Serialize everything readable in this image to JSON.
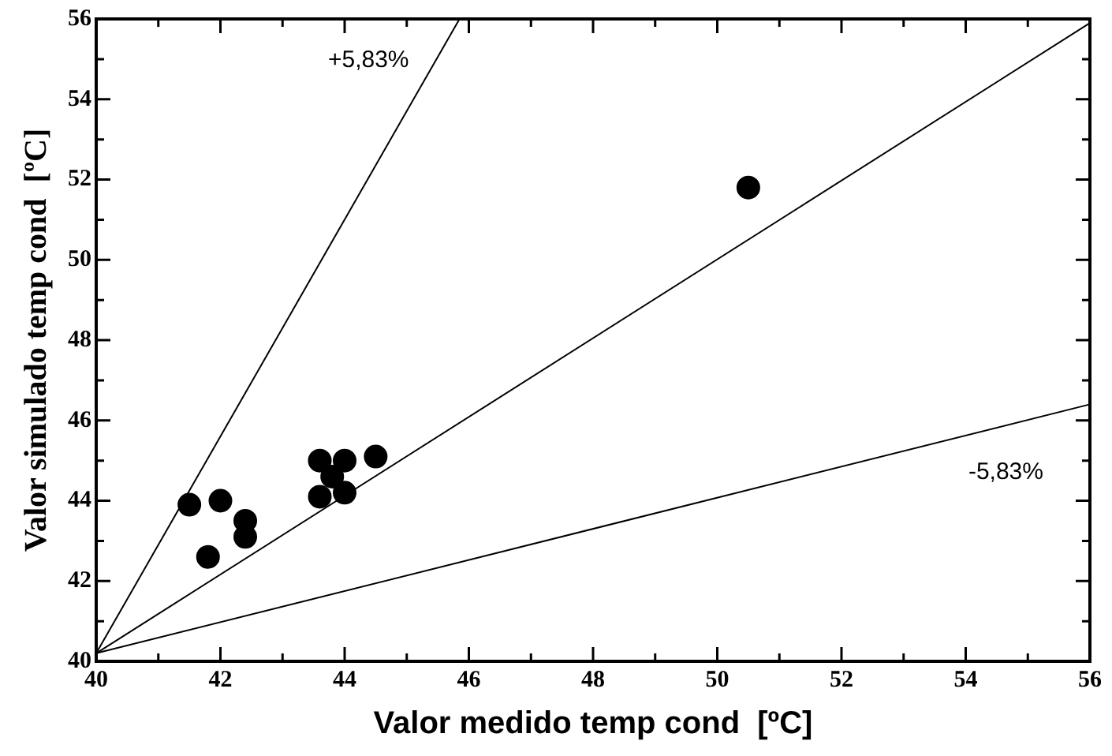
{
  "chart_data": {
    "type": "scatter",
    "xlabel": "Valor medido temp cond  [ºC]",
    "ylabel": "Valor simulado temp cond  [ºC]",
    "xlim": [
      40,
      56
    ],
    "ylim": [
      40,
      56
    ],
    "xticks": [
      40,
      {
        "value": 41,
        "label": null
      },
      42,
      {
        "value": 43,
        "label": null
      },
      44,
      {
        "value": 45,
        "label": null
      },
      46,
      {
        "value": 47,
        "label": null
      },
      48,
      {
        "value": 49,
        "label": null
      },
      50,
      {
        "value": 51,
        "label": null
      },
      52,
      {
        "value": 53,
        "label": null
      },
      54,
      {
        "value": 55,
        "label": null
      },
      56
    ],
    "yticks": [
      40,
      {
        "value": 41,
        "label": null
      },
      42,
      {
        "value": 43,
        "label": null
      },
      44,
      {
        "value": 45,
        "label": null
      },
      46,
      {
        "value": 47,
        "label": null
      },
      48,
      {
        "value": 49,
        "label": null
      },
      50,
      {
        "value": 51,
        "label": null
      },
      52,
      {
        "value": 53,
        "label": null
      },
      54,
      {
        "value": 55,
        "label": null
      },
      56
    ],
    "grid": false,
    "series": [
      {
        "type": "scatter",
        "color": "#000000",
        "marker": "circle",
        "x": [
          41.5,
          42,
          41.8,
          42.4,
          42.4,
          43.6,
          44,
          43.8,
          43.6,
          44,
          44.5,
          50.5
        ],
        "values": [
          43.9,
          44,
          42.6,
          43.5,
          43.1,
          45,
          45,
          44.6,
          44.1,
          44.2,
          45.1,
          51.8
        ]
      },
      {
        "type": "line",
        "name": "+5,83%",
        "color": "#000000",
        "marker": "none",
        "x": [
          40,
          45.85
        ],
        "values": [
          40.2,
          56
        ]
      },
      {
        "type": "line",
        "color": "#000000",
        "marker": "none",
        "x": [
          40,
          56
        ],
        "values": [
          40.2,
          55.9
        ]
      },
      {
        "type": "line",
        "name": "-5,83%",
        "color": "#000000",
        "marker": "none",
        "x": [
          40,
          56
        ],
        "values": [
          40.2,
          46.4
        ]
      }
    ]
  }
}
